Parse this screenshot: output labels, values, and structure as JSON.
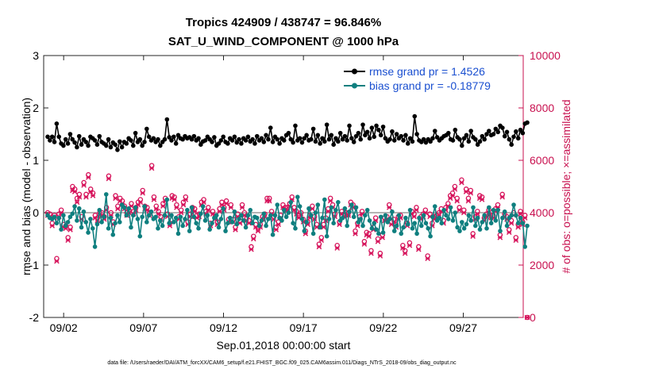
{
  "chart_data": {
    "type": "line",
    "title_line1": "Tropics 424909 / 438747 = 96.846%",
    "title_line2": "SAT_U_WIND_COMPONENT @ 1000 hPa",
    "ylabel_left": "rmse and bias (model - observation)",
    "ylabel_right": "# of obs: o=possible; ×=assimilated",
    "xlabel": "Sep.01,2018 00:00:00 start",
    "data_file": "data file: /Users/raeder/DAI/ATM_forcXX/CAM6_setup/f.e21.FHIST_BGC.f09_025.CAM6assim.011/Diags_NTrS_2018-09/obs_diag_output.nc",
    "ylim_left": [
      -2,
      3
    ],
    "ylim_right": [
      0,
      10000
    ],
    "xlim": [
      0.75,
      30.75
    ],
    "yticks_left": [
      "3",
      "2",
      "1",
      "0",
      "-1",
      "-2"
    ],
    "yticks_right": [
      "10000",
      "8000",
      "6000",
      "4000",
      "2000",
      "0"
    ],
    "xticks": [
      {
        "day": 2,
        "label": "09/02"
      },
      {
        "day": 7,
        "label": "09/07"
      },
      {
        "day": 12,
        "label": "09/12"
      },
      {
        "day": 17,
        "label": "09/17"
      },
      {
        "day": 22,
        "label": "09/22"
      },
      {
        "day": 27,
        "label": "09/27"
      }
    ],
    "colors": {
      "rmse": "#000000",
      "bias": "#0f7f7f",
      "obs": "#d6125a",
      "right_axis": "#c8104f",
      "zero_line": "#b4b4b4"
    },
    "series": [
      {
        "name": "rmse grand pr = 1.4526",
        "key": "rmse",
        "values": [
          1.45,
          1.38,
          1.45,
          1.35,
          1.7,
          1.45,
          1.32,
          1.28,
          1.4,
          1.32,
          1.5,
          1.4,
          1.34,
          1.25,
          1.46,
          1.3,
          1.4,
          1.35,
          1.28,
          1.45,
          1.42,
          1.38,
          1.3,
          1.46,
          1.35,
          1.32,
          1.28,
          1.4,
          1.25,
          1.34,
          1.3,
          1.2,
          1.36,
          1.25,
          1.35,
          1.32,
          1.42,
          1.38,
          1.28,
          1.52,
          1.35,
          1.4,
          1.28,
          1.35,
          1.6,
          1.45,
          1.38,
          1.42,
          1.35,
          1.4,
          1.28,
          1.35,
          1.4,
          1.78,
          1.44,
          1.38,
          1.45,
          1.32,
          1.48,
          1.42,
          1.4,
          1.46,
          1.42,
          1.44,
          1.4,
          1.46,
          1.38,
          1.42,
          1.3,
          1.36,
          1.38,
          1.45,
          1.4,
          1.35,
          1.44,
          1.28,
          1.32,
          1.38,
          1.45,
          1.35,
          1.32,
          1.42,
          1.38,
          1.45,
          1.34,
          1.4,
          1.32,
          1.42,
          1.38,
          1.45,
          1.36,
          1.4,
          1.32,
          1.46,
          1.38,
          1.42,
          1.35,
          1.48,
          1.4,
          1.62,
          1.35,
          1.45,
          1.4,
          1.32,
          1.42,
          1.38,
          1.48,
          1.52,
          1.4,
          1.34,
          1.66,
          1.38,
          1.42,
          1.34,
          1.42,
          1.48,
          1.38,
          1.4,
          1.6,
          1.36,
          1.48,
          1.32,
          1.42,
          1.36,
          1.68,
          1.4,
          1.48,
          1.3,
          1.42,
          1.36,
          1.52,
          1.4,
          1.46,
          1.38,
          1.66,
          1.42,
          1.35,
          1.46,
          1.52,
          1.4,
          1.68,
          1.48,
          1.54,
          1.42,
          1.62,
          1.45,
          1.66,
          1.58,
          1.48,
          1.64,
          1.42,
          1.36,
          1.4,
          1.55,
          1.38,
          1.5,
          1.42,
          1.46,
          1.38,
          1.48,
          1.32,
          1.42,
          1.36,
          1.84,
          1.5,
          1.38,
          1.35,
          1.4,
          1.34,
          1.4,
          1.36,
          1.42,
          1.56,
          1.44,
          1.38,
          1.42,
          1.46,
          1.48,
          1.52,
          1.4,
          1.38,
          1.58,
          1.44,
          1.4,
          1.28,
          1.42,
          1.48,
          1.36,
          1.56,
          1.44,
          1.4,
          1.3,
          1.36,
          1.46,
          1.4,
          1.5,
          1.56,
          1.48,
          1.5,
          1.6,
          1.54,
          1.66,
          1.62,
          1.46,
          1.54,
          1.4,
          1.3,
          1.45,
          1.55,
          1.42,
          1.58,
          1.52,
          1.7,
          1.72
        ]
      },
      {
        "name": "bias grand pr = -0.18779",
        "key": "bias",
        "values": [
          -0.05,
          -0.1,
          -0.12,
          -0.08,
          -0.2,
          -0.1,
          -0.32,
          -0.05,
          -0.25,
          -0.18,
          -0.08,
          -0.02,
          0.12,
          -0.15,
          0.08,
          -0.28,
          0.02,
          -0.18,
          -0.38,
          -0.12,
          -0.3,
          -0.65,
          -0.22,
          0.05,
          -0.18,
          -0.08,
          0.35,
          -0.3,
          -0.1,
          -0.42,
          -0.2,
          -0.05,
          -0.18,
          0.15,
          0.1,
          -0.05,
          0.08,
          -0.28,
          -0.05,
          0.1,
          -0.12,
          -0.45,
          -0.08,
          0.12,
          -0.18,
          -0.05,
          0.02,
          -0.12,
          -0.08,
          -0.3,
          -0.15,
          -0.25,
          -0.05,
          0.25,
          -0.2,
          -0.05,
          -0.18,
          -0.1,
          -0.4,
          -0.08,
          -0.25,
          -0.12,
          0.05,
          -0.35,
          0.1,
          -0.08,
          -0.2,
          -0.3,
          -0.02,
          0.12,
          -0.15,
          -0.05,
          -0.32,
          -0.2,
          -0.1,
          -0.05,
          -0.28,
          -0.12,
          0.08,
          -0.35,
          -0.2,
          -0.1,
          -0.18,
          0.02,
          -0.22,
          -0.12,
          -0.05,
          -0.15,
          -0.28,
          -0.05,
          0.05,
          -0.2,
          -0.08,
          -0.1,
          -0.25,
          -0.15,
          -0.02,
          -0.25,
          -0.12,
          -0.05,
          -0.42,
          -0.05,
          0.15,
          -0.1,
          -0.15,
          0.05,
          -0.08,
          0.0,
          0.2,
          -0.2,
          -0.3,
          0.3,
          0.12,
          -0.12,
          -0.35,
          -0.18,
          0.08,
          -0.05,
          -0.4,
          0.0,
          0.15,
          -0.28,
          -0.1,
          0.25,
          -0.45,
          -0.12,
          0.1,
          -0.2,
          0.05,
          0.2,
          -0.15,
          -0.1,
          0.08,
          -0.25,
          0.02,
          0.15,
          -0.08,
          0.1,
          -0.18,
          -0.12,
          -0.25,
          -0.05,
          0.05,
          -0.15,
          -0.3,
          -0.2,
          -0.32,
          -0.4,
          -0.08,
          -0.38,
          -0.05,
          -0.18,
          -0.12,
          0.02,
          -0.35,
          -0.25,
          -0.05,
          -0.4,
          -0.28,
          -0.1,
          -0.22,
          0.05,
          -0.3,
          -0.2,
          -0.4,
          -0.1,
          -0.25,
          -0.05,
          -0.2,
          -0.3,
          -0.45,
          -0.08,
          0.12,
          -0.15,
          -0.1,
          -0.2,
          0.05,
          -0.05,
          -0.12,
          0.1,
          -0.15,
          0.0,
          -0.28,
          -0.35,
          -0.18,
          -0.3,
          -0.22,
          -0.05,
          -0.15,
          0.1,
          -0.25,
          -0.1,
          -0.32,
          -0.18,
          -0.05,
          -0.3,
          0.1,
          -0.2,
          0.05,
          -0.15,
          0.05,
          -0.35,
          -0.1,
          0.02,
          -0.25,
          -0.1,
          -0.05,
          0.15,
          -0.05,
          -0.2,
          -0.1,
          -0.2,
          -0.65,
          -0.25
        ]
      },
      {
        "name": "possible obs",
        "key": "obs_possible",
        "values": [
          4000,
          3950,
          3600,
          3900,
          2250,
          3950,
          4100,
          3550,
          3500,
          3050,
          3450,
          5000,
          4900,
          4550,
          4700,
          3850,
          5150,
          4700,
          5450,
          4900,
          4750,
          3900,
          3800,
          4000,
          4000,
          3850,
          4200,
          5400,
          4000,
          3650,
          4650,
          4250,
          4550,
          4450,
          4250,
          4000,
          4100,
          4350,
          4050,
          4200,
          4400,
          4500,
          4850,
          4250,
          4200,
          4000,
          5800,
          4600,
          4250,
          4050,
          3850,
          4350,
          4550,
          3950,
          3600,
          4650,
          4600,
          4300,
          3850,
          4100,
          4400,
          4600,
          3650,
          3950,
          4200,
          4150,
          3900,
          3950,
          4400,
          4500,
          4050,
          4200,
          3600,
          4050,
          3850,
          3650,
          4150,
          4400,
          4200,
          4450,
          3750,
          4300,
          3750,
          3450,
          3950,
          3700,
          4300,
          4000,
          3800,
          3700,
          2700,
          3100,
          3550,
          3400,
          3550,
          3850,
          3950,
          4550,
          4550,
          4050,
          3850,
          3450,
          3650,
          3900,
          4300,
          4200,
          4200,
          4350,
          4600,
          4200,
          4050,
          3900,
          4000,
          3750,
          3300,
          3650,
          3900,
          4250,
          3850,
          3550,
          2800,
          3050,
          3550,
          3800,
          4150,
          4550,
          4300,
          3950,
          2750,
          3650,
          4050,
          3950,
          4000,
          4000,
          4400,
          4300,
          3300,
          3600,
          3850,
          4050,
          2900,
          3250,
          3200,
          2550,
          3450,
          3800,
          3000,
          2450,
          3150,
          3800,
          3850,
          4300,
          3650,
          3750,
          3550,
          3850,
          3900,
          2750,
          2550,
          3600,
          2850,
          4050,
          3950,
          4200,
          2700,
          3850,
          3950,
          4100,
          2350,
          3950,
          3600,
          3850,
          3900,
          4000,
          4150,
          3700,
          4200,
          4350,
          4650,
          4750,
          5000,
          4550,
          4200,
          5250,
          4100,
          4900,
          4550,
          4850,
          3200,
          3850,
          4050,
          4650,
          4600,
          3800,
          3950,
          4100,
          3900,
          3900,
          4150,
          4300,
          3150,
          4700,
          3950,
          3850,
          3350,
          3700,
          4000,
          3050,
          3550,
          4050,
          3650,
          3900,
          0
        ]
      },
      {
        "name": "assimilated obs",
        "key": "obs_assim",
        "values": [
          3900,
          3850,
          3500,
          3800,
          2150,
          3850,
          4000,
          3450,
          3400,
          2950,
          3350,
          4850,
          4800,
          4400,
          4600,
          3750,
          5050,
          4600,
          5350,
          4800,
          4650,
          3800,
          3700,
          3900,
          3900,
          3750,
          4100,
          5300,
          3900,
          3550,
          4550,
          4150,
          4450,
          4350,
          4150,
          3900,
          4000,
          4250,
          3950,
          4100,
          4300,
          4400,
          4750,
          4150,
          4100,
          3900,
          5700,
          4500,
          4150,
          3950,
          3750,
          4250,
          4450,
          3850,
          3500,
          4550,
          4500,
          4200,
          3750,
          4000,
          4300,
          4500,
          3550,
          3850,
          4100,
          4050,
          3800,
          3850,
          4300,
          4400,
          3950,
          4100,
          3500,
          3950,
          3750,
          3550,
          4050,
          4300,
          4100,
          4350,
          3650,
          4200,
          3650,
          3350,
          3850,
          3600,
          4200,
          3900,
          3700,
          3600,
          2600,
          3000,
          3450,
          3300,
          3450,
          3750,
          3850,
          4450,
          4450,
          3950,
          3750,
          3350,
          3550,
          3800,
          4200,
          4100,
          4100,
          4250,
          4500,
          4100,
          3950,
          3800,
          3900,
          3650,
          3200,
          3550,
          3800,
          4150,
          3750,
          3450,
          2700,
          2950,
          3450,
          3700,
          4050,
          4450,
          4200,
          3850,
          2650,
          3550,
          3950,
          3850,
          3900,
          3900,
          4300,
          4200,
          3200,
          3500,
          3750,
          3950,
          2800,
          3150,
          3100,
          2450,
          3350,
          3700,
          2900,
          2350,
          3050,
          3700,
          3750,
          4200,
          3550,
          3650,
          3450,
          3750,
          3800,
          2650,
          2450,
          3500,
          2750,
          3950,
          3850,
          4100,
          2600,
          3750,
          3850,
          4000,
          2250,
          3850,
          3500,
          3750,
          3800,
          3900,
          4050,
          3600,
          4100,
          4250,
          4550,
          4650,
          4900,
          4450,
          4100,
          5150,
          4000,
          4800,
          4450,
          4750,
          3100,
          3750,
          3950,
          4550,
          4500,
          3700,
          3850,
          4000,
          3800,
          3800,
          4050,
          4200,
          3050,
          4600,
          3850,
          3750,
          3250,
          3600,
          3900,
          2950,
          3450,
          3950,
          3550,
          3800,
          0
        ]
      }
    ]
  }
}
